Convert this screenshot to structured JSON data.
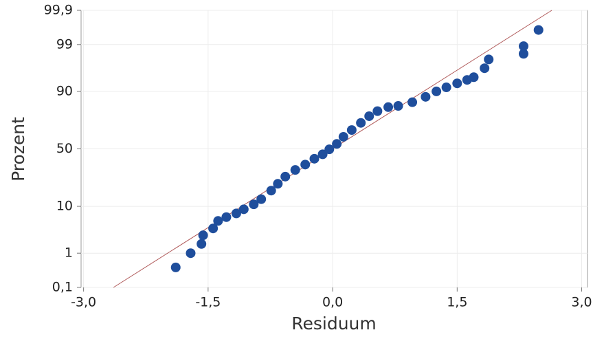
{
  "chart_data": {
    "type": "scatter",
    "yscale": "probability",
    "grid": true,
    "xlabel": "Residuum",
    "ylabel": "Prozent",
    "xlim": [
      -3.03,
      3.07
    ],
    "ylim": [
      0.1,
      99.9
    ],
    "xticks": [
      {
        "value": -3,
        "label": "-3,0"
      },
      {
        "value": -1.5,
        "label": "-1,5"
      },
      {
        "value": 0,
        "label": "0,0"
      },
      {
        "value": 1.5,
        "label": "1,5"
      },
      {
        "value": 3,
        "label": "3,0"
      }
    ],
    "yticks": [
      {
        "value": 0.1,
        "label": "0,1"
      },
      1,
      10,
      50,
      90,
      99,
      {
        "value": 99.9,
        "label": "99,9"
      }
    ],
    "fit_line": {
      "color": "#b05a5a",
      "x": [
        -2.64,
        2.64
      ],
      "y": [
        0.1,
        99.9
      ]
    },
    "series": [
      {
        "color": "#1f4e9c",
        "x": [
          -1.89,
          -1.71,
          -1.58,
          -1.56,
          -1.44,
          -1.38,
          -1.28,
          -1.16,
          -1.07,
          -0.95,
          -0.86,
          -0.74,
          -0.66,
          -0.57,
          -0.45,
          -0.33,
          -0.22,
          -0.12,
          -0.04,
          0.05,
          0.13,
          0.23,
          0.34,
          0.44,
          0.54,
          0.67,
          0.79,
          0.96,
          1.12,
          1.25,
          1.37,
          1.5,
          1.62,
          1.7,
          1.83,
          1.88,
          2.3,
          2.3,
          2.48
        ],
        "values": [
          0.41,
          1.0,
          1.7,
          2.7,
          3.8,
          5.4,
          6.4,
          7.5,
          8.9,
          10.8,
          13.1,
          17.6,
          21.8,
          26.8,
          31.9,
          36.3,
          41.3,
          45.2,
          49.6,
          54.4,
          60.6,
          66.3,
          71.9,
          76.7,
          80.0,
          82.4,
          83.1,
          85.1,
          87.7,
          90.0,
          91.5,
          92.8,
          93.8,
          94.5,
          96.4,
          97.7,
          98.3,
          98.9,
          99.6
        ]
      }
    ]
  }
}
